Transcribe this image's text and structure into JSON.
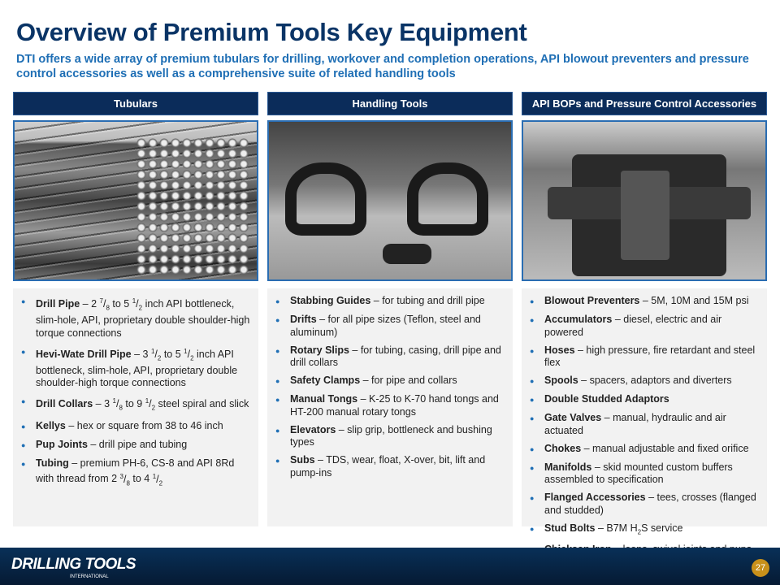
{
  "title": "Overview of Premium Tools Key Equipment",
  "subtitle": "DTI offers a wide array of premium tubulars for drilling, workover and completion operations, API blowout preventers and pressure control accessories as well as a comprehensive suite of related handling tools",
  "columns": [
    {
      "header": "Tubulars",
      "photo": "drill-pipe-stack-photo",
      "items": [
        {
          "term": "Drill Pipe",
          "desc": [
            {
              "t": " – 2 "
            },
            {
              "n": "7",
              "d": "8"
            },
            {
              "t": " to 5 "
            },
            {
              "n": "1",
              "d": "2"
            },
            {
              "t": " inch API bottleneck, slim-hole, API, proprietary double shoulder-high torque connections"
            }
          ]
        },
        {
          "term": "Hevi-Wate Drill Pipe",
          "desc": [
            {
              "t": " – 3 "
            },
            {
              "n": "1",
              "d": "2"
            },
            {
              "t": " to 5 "
            },
            {
              "n": "1",
              "d": "2"
            },
            {
              "t": " inch  API bottleneck, slim-hole, API, proprietary double shoulder-high torque connections"
            }
          ]
        },
        {
          "term": "Drill Collars",
          "desc": [
            {
              "t": " – 3 "
            },
            {
              "n": "1",
              "d": "8"
            },
            {
              "t": " to 9 "
            },
            {
              "n": "1",
              "d": "2"
            },
            {
              "t": " steel spiral and slick"
            }
          ]
        },
        {
          "term": "Kellys",
          "desc": [
            {
              "t": " – hex or square from 38 to 46 inch"
            }
          ]
        },
        {
          "term": "Pup Joints",
          "desc": [
            {
              "t": " – drill pipe and tubing"
            }
          ]
        },
        {
          "term": "Tubing",
          "desc": [
            {
              "t": " – premium PH-6, CS-8 and API 8Rd with thread from 2 "
            },
            {
              "n": "3",
              "d": "8"
            },
            {
              "t": " to 4 "
            },
            {
              "n": "1",
              "d": "2"
            }
          ]
        }
      ]
    },
    {
      "header": "Handling Tools",
      "photo": "handling-tools-photo",
      "items": [
        {
          "term": "Stabbing Guides",
          "desc": [
            {
              "t": " – for tubing and drill pipe"
            }
          ]
        },
        {
          "term": "Drifts",
          "desc": [
            {
              "t": " – for all pipe sizes (Teflon, steel and aluminum)"
            }
          ]
        },
        {
          "term": "Rotary Slips",
          "desc": [
            {
              "t": " – for tubing, casing, drill pipe and drill collars"
            }
          ]
        },
        {
          "term": "Safety Clamps",
          "desc": [
            {
              "t": " – for pipe and collars"
            }
          ]
        },
        {
          "term": "Manual Tongs",
          "desc": [
            {
              "t": " – K-25 to K-70 hand tongs and HT-200 manual rotary tongs"
            }
          ]
        },
        {
          "term": "Elevators",
          "desc": [
            {
              "t": " – slip grip, bottleneck and bushing types"
            }
          ]
        },
        {
          "term": "Subs",
          "desc": [
            {
              "t": " – TDS, wear, float, X-over, bit, lift and pump-ins"
            }
          ]
        }
      ]
    },
    {
      "header": "API BOPs and Pressure Control Accessories",
      "photo": "blowout-preventer-photo",
      "items": [
        {
          "term": "Blowout Preventers",
          "desc": [
            {
              "t": " – 5M, 10M and 15M psi"
            }
          ]
        },
        {
          "term": "Accumulators",
          "desc": [
            {
              "t": " – diesel, electric and air powered"
            }
          ]
        },
        {
          "term": "Hoses",
          "desc": [
            {
              "t": " – high pressure, fire retardant and steel flex"
            }
          ]
        },
        {
          "term": "Spools",
          "desc": [
            {
              "t": " – spacers, adaptors and diverters"
            }
          ]
        },
        {
          "term": "Double Studded Adaptors",
          "desc": []
        },
        {
          "term": "Gate Valves",
          "desc": [
            {
              "t": " – manual, hydraulic and air actuated"
            }
          ]
        },
        {
          "term": "Chokes",
          "desc": [
            {
              "t": " – manual adjustable and fixed orifice"
            }
          ]
        },
        {
          "term": "Manifolds",
          "desc": [
            {
              "t": " – skid mounted custom buffers assembled to specification"
            }
          ]
        },
        {
          "term": "Flanged Accessories",
          "desc": [
            {
              "t": " – tees, crosses (flanged and studded)"
            }
          ]
        },
        {
          "term": "Stud Bolts",
          "desc": [
            {
              "t": " – B7M H"
            },
            {
              "sub": "2"
            },
            {
              "t": "S service"
            }
          ]
        },
        {
          "term": "Chicksan Iron",
          "desc": [
            {
              "t": " – loops, swivel joints and pups"
            }
          ]
        }
      ]
    }
  ],
  "footer": {
    "logo": "DRILLING TOOLS",
    "logo_sub": "INTERNATIONAL",
    "page": "27"
  },
  "colors": {
    "title": "#0a3466",
    "subtitle": "#1f6fb5",
    "header_bg": "#0b2c5a",
    "accent": "#c8901a"
  }
}
